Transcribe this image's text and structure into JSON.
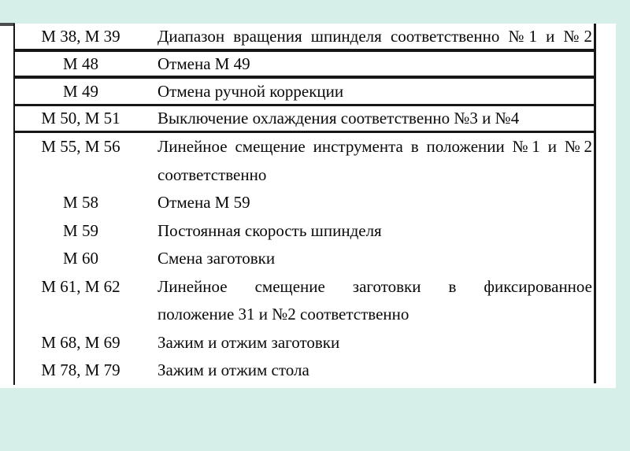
{
  "palette": {
    "page_background": "#d6f0e9",
    "table_background": "#ffffff",
    "border_color": "#161616",
    "text_color": "#0a0a0a"
  },
  "table": {
    "rows": [
      {
        "code": "М 38, М 39",
        "lines": [
          {
            "text": "Диапазон вращения шпинделя соответственно №1 и №2",
            "justify": true
          }
        ],
        "separator": "thick"
      },
      {
        "code": "М 48",
        "lines": [
          {
            "text": "Отмена М 49",
            "justify": false
          }
        ],
        "separator": "thick"
      },
      {
        "code": "М 49",
        "lines": [
          {
            "text": "Отмена ручной коррекции",
            "justify": false
          }
        ],
        "separator": "thin"
      },
      {
        "code": "М 50, М 51",
        "lines": [
          {
            "text": "Выключение охлаждения соответственно №3 и №4",
            "justify": false
          }
        ],
        "separator": "thin"
      },
      {
        "code": "М 55, М 56",
        "lines": [
          {
            "text": "Линейное смещение инструмента в положении №1 и №2",
            "justify": true
          },
          {
            "text": "соответственно",
            "justify": false
          }
        ],
        "separator": null
      },
      {
        "code": "М 58",
        "lines": [
          {
            "text": "Отмена М 59",
            "justify": false
          }
        ],
        "separator": null
      },
      {
        "code": "М 59",
        "lines": [
          {
            "text": "Постоянная скорость шпинделя",
            "justify": false
          }
        ],
        "separator": null
      },
      {
        "code": "М 60",
        "lines": [
          {
            "text": "Смена заготовки",
            "justify": false
          }
        ],
        "separator": null
      },
      {
        "code": "М 61, М 62",
        "lines": [
          {
            "text": "Линейное смещение заготовки в фиксированное",
            "justify": true
          },
          {
            "text": "положение 31 и №2 соответственно",
            "justify": false
          }
        ],
        "separator": null
      },
      {
        "code": "М 68, М 69",
        "lines": [
          {
            "text": "Зажим и отжим заготовки",
            "justify": false
          }
        ],
        "separator": null
      },
      {
        "code": "М 78, М 79",
        "lines": [
          {
            "text": "Зажим и отжим стола",
            "justify": false
          }
        ],
        "separator": null
      }
    ]
  }
}
